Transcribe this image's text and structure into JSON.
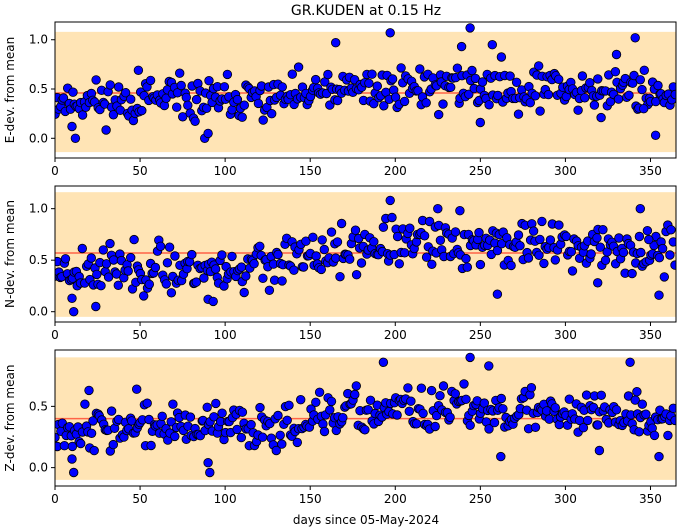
{
  "chart_data": {
    "type": "scatter",
    "title": "GR.KUDEN at 0.15 Hz",
    "xlabel": "days since 05-May-2024",
    "xlim": [
      0,
      365
    ],
    "xticks": [
      0,
      50,
      100,
      150,
      200,
      250,
      300,
      350
    ],
    "colors": {
      "point_fill": "#0000ff",
      "point_edge": "#000000",
      "mean_line": "#ff6347",
      "band": "#ffe4b5"
    },
    "panels": [
      {
        "ylabel": "E-dev. from mean",
        "ylim": [
          -0.2,
          1.18
        ],
        "yticks": [
          0.0,
          0.5,
          1.0
        ],
        "mean": 0.46,
        "band": [
          -0.14,
          1.08
        ],
        "seed": 11,
        "base_early": 0.38,
        "base_late": 0.52,
        "spread": 0.36,
        "highlights": [
          [
            12,
            0.0
          ],
          [
            10,
            0.12
          ],
          [
            49,
            0.69
          ],
          [
            165,
            0.97
          ],
          [
            197,
            1.07
          ],
          [
            244,
            1.12
          ],
          [
            239,
            0.93
          ],
          [
            257,
            0.95
          ],
          [
            330,
            0.85
          ],
          [
            341,
            1.02
          ],
          [
            346,
            0.3
          ],
          [
            353,
            0.03
          ],
          [
            88,
            0.0
          ],
          [
            90,
            0.05
          ],
          [
            250,
            0.16
          ],
          [
            321,
            0.21
          ]
        ]
      },
      {
        "ylabel": "N-dev. from mean",
        "ylim": [
          -0.1,
          1.22
        ],
        "yticks": [
          0.0,
          0.5,
          1.0
        ],
        "mean": 0.57,
        "band": [
          -0.05,
          1.16
        ],
        "seed": 23,
        "base_early": 0.42,
        "base_late": 0.66,
        "spread": 0.38,
        "highlights": [
          [
            11,
            0.0
          ],
          [
            10,
            0.13
          ],
          [
            24,
            0.05
          ],
          [
            197,
            1.08
          ],
          [
            225,
            1.0
          ],
          [
            238,
            0.98
          ],
          [
            344,
            1.0
          ],
          [
            349,
            0.7
          ],
          [
            355,
            0.16
          ],
          [
            319,
            0.28
          ],
          [
            260,
            0.17
          ],
          [
            90,
            0.12
          ],
          [
            93,
            0.1
          ]
        ]
      },
      {
        "ylabel": "Z-dev. from mean",
        "ylim": [
          -0.15,
          0.96
        ],
        "yticks": [
          0.0,
          0.5
        ],
        "mean": 0.4,
        "band": [
          -0.1,
          0.9
        ],
        "seed": 37,
        "base_early": 0.33,
        "base_late": 0.47,
        "spread": 0.3,
        "highlights": [
          [
            11,
            -0.04
          ],
          [
            10,
            0.07
          ],
          [
            20,
            0.63
          ],
          [
            48,
            0.64
          ],
          [
            193,
            0.86
          ],
          [
            244,
            0.9
          ],
          [
            255,
            0.83
          ],
          [
            338,
            0.86
          ],
          [
            342,
            0.62
          ],
          [
            355,
            0.09
          ],
          [
            91,
            -0.04
          ],
          [
            90,
            0.04
          ],
          [
            262,
            0.09
          ],
          [
            320,
            0.14
          ]
        ]
      }
    ]
  }
}
